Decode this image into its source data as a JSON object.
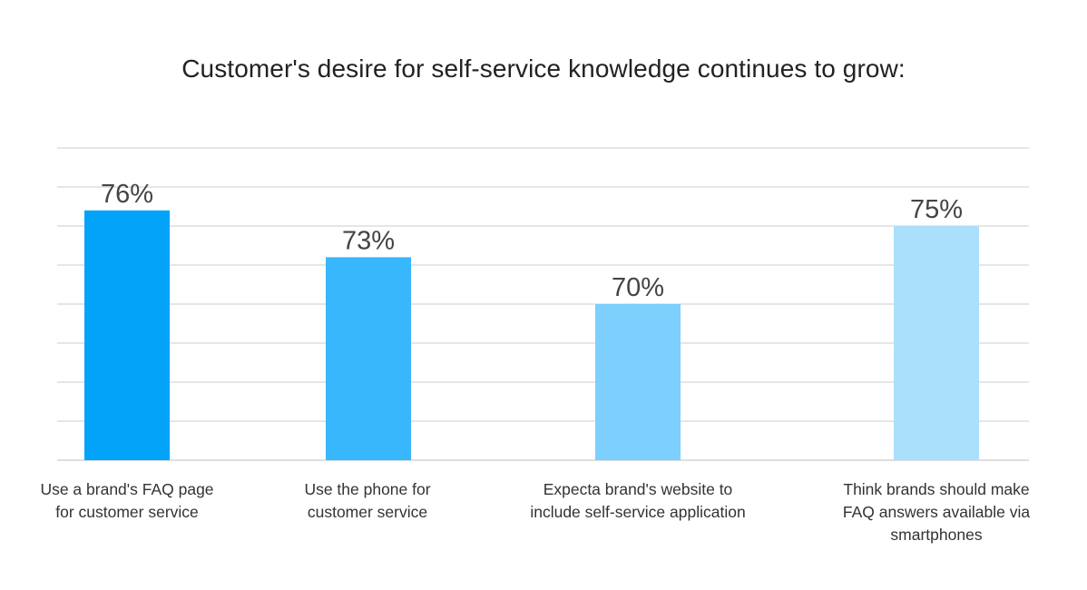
{
  "chart_data": {
    "type": "bar",
    "title": "Customer's desire for self-service knowledge  continues to grow:",
    "xlabel": "",
    "ylabel": "",
    "ylim": [
      60,
      80
    ],
    "grid": true,
    "legend": "none",
    "categories": [
      "Use a brand's FAQ page\nfor customer service",
      "Use the phone for\ncustomer service",
      "Expecta brand's website to\ninclude self-service application",
      "Think brands should make\nFAQ answers available via\nsmartphones"
    ],
    "values": [
      76,
      73,
      70,
      75
    ],
    "value_labels": [
      "76%",
      "73%",
      "70%",
      "75%"
    ],
    "colors": [
      "#03a3f9",
      "#38b7fc",
      "#7dcffd",
      "#abe0fd"
    ],
    "gridline_color": "#cccccc",
    "label_color": "#444444"
  }
}
